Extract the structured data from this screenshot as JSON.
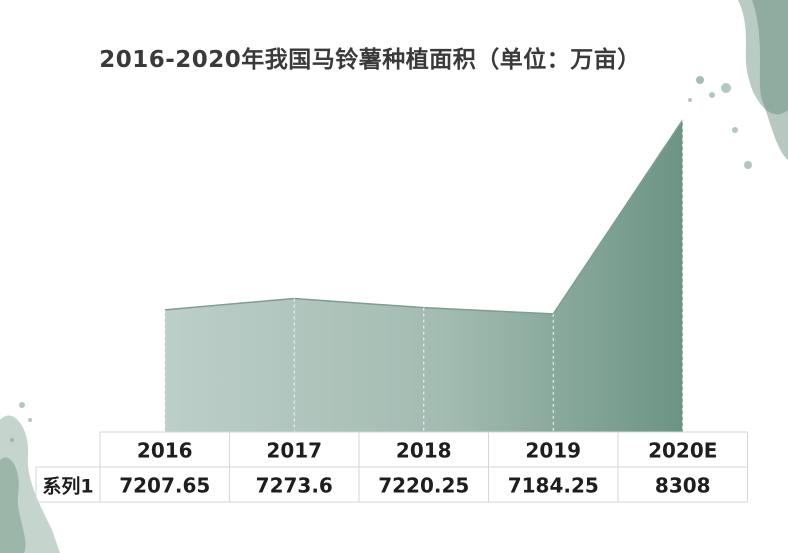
{
  "chart_data": {
    "type": "area",
    "title": "2016-2020年我国马铃薯种植面积（单位：万亩）",
    "categories": [
      "2016",
      "2017",
      "2018",
      "2019",
      "2020E"
    ],
    "series": [
      {
        "name": "系列1",
        "values": [
          7207.65,
          7273.6,
          7220.25,
          7184.25,
          8308
        ],
        "labels": [
          "7207.65",
          "7273.6",
          "7220.25",
          "7184.25",
          "8308"
        ]
      }
    ],
    "ylim": [
      6500,
      8400
    ],
    "xlabel": "",
    "ylabel": "",
    "grid": false,
    "data_table": true
  },
  "colors": {
    "area_light": "#bccfc8",
    "area_dark": "#6c9484",
    "decor": "#7fa292",
    "border": "#d6d6d6"
  }
}
